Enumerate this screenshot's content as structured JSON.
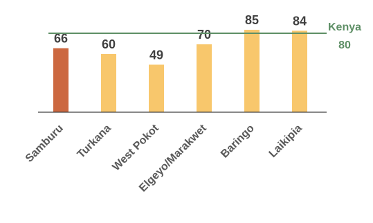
{
  "chart_data": {
    "type": "bar",
    "categories": [
      "Samburu",
      "Turkana",
      "West Pokot",
      "Elgeyo/Marakwet",
      "Baringo",
      "Laikipia"
    ],
    "values": [
      66,
      60,
      49,
      70,
      85,
      84
    ],
    "value_labels": [
      "66",
      "60",
      "49",
      "70",
      "85",
      "84"
    ],
    "ylim": [
      0,
      85
    ],
    "grid": false,
    "reference_line": {
      "name": "Kenya",
      "value": 80,
      "value_label": "80",
      "color": "#5e8f66"
    },
    "colors": {
      "highlight": "#cc6840",
      "default": "#f8c76c",
      "axis": "#404040"
    },
    "highlight_index": 0
  }
}
